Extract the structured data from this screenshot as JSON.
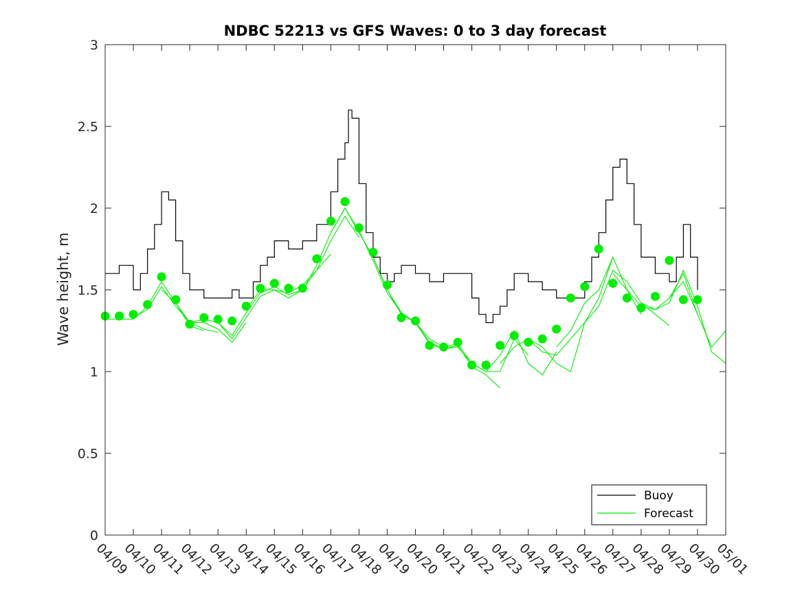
{
  "chart_data": {
    "type": "line",
    "title": "NDBC 52213 vs GFS Waves: 0 to 3 day forecast",
    "xlabel": "",
    "ylabel": "Wave height, m",
    "xlim": [
      "04/09",
      "05/01"
    ],
    "ylim": [
      0,
      3
    ],
    "x_tick_labels": [
      "04/09",
      "04/10",
      "04/11",
      "04/12",
      "04/13",
      "04/14",
      "04/15",
      "04/16",
      "04/17",
      "04/18",
      "04/19",
      "04/20",
      "04/21",
      "04/22",
      "04/23",
      "04/24",
      "04/25",
      "04/26",
      "04/27",
      "04/28",
      "04/29",
      "04/30",
      "05/01"
    ],
    "y_ticks": [
      0,
      0.5,
      1,
      1.5,
      2,
      2.5,
      3
    ],
    "y_tick_labels": [
      "0",
      "0.5",
      "1",
      "1.5",
      "2",
      "2.5",
      "3"
    ],
    "grid": false,
    "legend_position": "bottom-right",
    "legend": [
      "Buoy",
      "Forecast"
    ],
    "colors": {
      "buoy": "#000000",
      "forecast": "#00ee00"
    },
    "buoy": {
      "name": "Buoy",
      "x": [
        "04/09 00:00",
        "04/09 12:00",
        "04/10 00:00",
        "04/10 06:00",
        "04/10 12:00",
        "04/10 18:00",
        "04/11 00:00",
        "04/11 06:00",
        "04/11 12:00",
        "04/11 18:00",
        "04/12 00:00",
        "04/12 12:00",
        "04/13 00:00",
        "04/13 12:00",
        "04/13 18:00",
        "04/14 00:00",
        "04/14 06:00",
        "04/14 12:00",
        "04/14 18:00",
        "04/15 00:00",
        "04/15 12:00",
        "04/16 00:00",
        "04/16 12:00",
        "04/17 00:00",
        "04/17 06:00",
        "04/17 12:00",
        "04/17 15:00",
        "04/17 18:00",
        "04/18 00:00",
        "04/18 06:00",
        "04/18 12:00",
        "04/18 18:00",
        "04/19 00:00",
        "04/19 06:00",
        "04/19 12:00",
        "04/20 00:00",
        "04/20 12:00",
        "04/21 00:00",
        "04/21 12:00",
        "04/22 00:00",
        "04/22 06:00",
        "04/22 12:00",
        "04/22 18:00",
        "04/23 00:00",
        "04/23 06:00",
        "04/23 12:00",
        "04/24 00:00",
        "04/24 12:00",
        "04/25 00:00",
        "04/25 12:00",
        "04/26 00:00",
        "04/26 06:00",
        "04/26 12:00",
        "04/26 18:00",
        "04/27 00:00",
        "04/27 06:00",
        "04/27 12:00",
        "04/27 18:00",
        "04/28 00:00",
        "04/28 12:00",
        "04/29 00:00",
        "04/29 06:00",
        "04/29 12:00",
        "04/29 18:00",
        "04/30 00:00"
      ],
      "y": [
        1.6,
        1.65,
        1.5,
        1.6,
        1.75,
        1.9,
        2.1,
        2.05,
        1.8,
        1.6,
        1.5,
        1.45,
        1.45,
        1.5,
        1.45,
        1.45,
        1.55,
        1.65,
        1.7,
        1.8,
        1.75,
        1.8,
        1.9,
        2.1,
        2.3,
        2.4,
        2.6,
        2.55,
        2.15,
        1.85,
        1.7,
        1.6,
        1.55,
        1.6,
        1.65,
        1.6,
        1.55,
        1.6,
        1.6,
        1.45,
        1.35,
        1.3,
        1.35,
        1.4,
        1.5,
        1.6,
        1.55,
        1.5,
        1.45,
        1.45,
        1.55,
        1.7,
        1.85,
        2.05,
        2.25,
        2.3,
        2.15,
        1.9,
        1.7,
        1.6,
        1.55,
        1.7,
        1.9,
        1.7,
        1.5
      ]
    },
    "forecast": {
      "name": "Forecast",
      "daily_x": [
        "04/09 00:00",
        "04/09 12:00",
        "04/10 00:00",
        "04/10 12:00",
        "04/11 00:00",
        "04/11 12:00",
        "04/12 00:00",
        "04/12 12:00",
        "04/13 00:00",
        "04/13 12:00",
        "04/14 00:00",
        "04/14 12:00",
        "04/15 00:00",
        "04/15 12:00",
        "04/16 00:00",
        "04/16 12:00",
        "04/17 00:00",
        "04/17 12:00",
        "04/18 00:00",
        "04/18 12:00",
        "04/19 00:00",
        "04/19 12:00",
        "04/20 00:00",
        "04/20 12:00",
        "04/21 00:00",
        "04/21 12:00",
        "04/22 00:00",
        "04/22 12:00",
        "04/23 00:00",
        "04/23 12:00",
        "04/24 00:00",
        "04/24 12:00",
        "04/25 00:00",
        "04/25 12:00",
        "04/26 00:00",
        "04/26 12:00",
        "04/27 00:00",
        "04/27 12:00",
        "04/28 00:00",
        "04/28 12:00",
        "04/29 00:00",
        "04/29 12:00",
        "04/30 00:00"
      ],
      "daily_y": [
        1.34,
        1.34,
        1.35,
        1.41,
        1.58,
        1.44,
        1.29,
        1.33,
        1.32,
        1.31,
        1.4,
        1.51,
        1.54,
        1.51,
        1.51,
        1.69,
        1.92,
        2.04,
        1.88,
        1.73,
        1.53,
        1.33,
        1.31,
        1.16,
        1.15,
        1.18,
        1.04,
        1.04,
        1.16,
        1.22,
        1.18,
        1.2,
        1.26,
        1.45,
        1.52,
        1.75,
        1.54,
        1.45,
        1.39,
        1.46,
        1.68,
        1.44,
        1.44
      ],
      "runs": [
        {
          "x": [
            "04/09 00:00",
            "04/10 00:00",
            "04/10 12:00",
            "04/11 00:00",
            "04/11 12:00",
            "04/12 00:00",
            "04/12 12:00"
          ],
          "y": [
            1.32,
            1.32,
            1.4,
            1.55,
            1.42,
            1.28,
            1.25
          ]
        },
        {
          "x": [
            "04/10 00:00",
            "04/10 12:00",
            "04/11 00:00",
            "04/11 12:00",
            "04/12 00:00",
            "04/12 12:00",
            "04/13 00:00"
          ],
          "y": [
            1.33,
            1.38,
            1.52,
            1.4,
            1.3,
            1.26,
            1.24
          ]
        },
        {
          "x": [
            "04/11 00:00",
            "04/11 12:00",
            "04/12 00:00",
            "04/12 12:00",
            "04/13 00:00",
            "04/13 12:00",
            "04/14 00:00"
          ],
          "y": [
            1.5,
            1.42,
            1.3,
            1.3,
            1.26,
            1.18,
            1.3
          ]
        },
        {
          "x": [
            "04/12 00:00",
            "04/12 12:00",
            "04/13 00:00",
            "04/13 12:00",
            "04/14 00:00",
            "04/14 12:00",
            "04/15 00:00"
          ],
          "y": [
            1.3,
            1.32,
            1.3,
            1.2,
            1.33,
            1.46,
            1.5
          ]
        },
        {
          "x": [
            "04/13 00:00",
            "04/13 12:00",
            "04/14 00:00",
            "04/14 12:00",
            "04/15 00:00",
            "04/15 12:00",
            "04/16 00:00"
          ],
          "y": [
            1.3,
            1.22,
            1.36,
            1.48,
            1.52,
            1.47,
            1.5
          ]
        },
        {
          "x": [
            "04/14 00:00",
            "04/14 12:00",
            "04/15 00:00",
            "04/15 12:00",
            "04/16 00:00",
            "04/16 12:00",
            "04/17 00:00"
          ],
          "y": [
            1.38,
            1.5,
            1.5,
            1.48,
            1.53,
            1.62,
            1.72
          ]
        },
        {
          "x": [
            "04/15 00:00",
            "04/15 12:00",
            "04/16 00:00",
            "04/16 12:00",
            "04/17 00:00",
            "04/17 12:00",
            "04/18 00:00"
          ],
          "y": [
            1.5,
            1.45,
            1.5,
            1.62,
            1.8,
            1.95,
            1.82
          ]
        },
        {
          "x": [
            "04/16 00:00",
            "04/16 12:00",
            "04/17 00:00",
            "04/17 12:00",
            "04/18 00:00",
            "04/18 12:00",
            "04/19 00:00"
          ],
          "y": [
            1.5,
            1.65,
            1.85,
            2.0,
            1.85,
            1.7,
            1.5
          ]
        },
        {
          "x": [
            "04/17 00:00",
            "04/17 12:00",
            "04/18 00:00",
            "04/18 12:00",
            "04/19 00:00",
            "04/19 12:00",
            "04/20 00:00"
          ],
          "y": [
            1.85,
            2.0,
            1.86,
            1.68,
            1.48,
            1.36,
            1.3
          ]
        },
        {
          "x": [
            "04/18 00:00",
            "04/18 12:00",
            "04/19 00:00",
            "04/19 12:00",
            "04/20 00:00",
            "04/20 12:00",
            "04/21 00:00"
          ],
          "y": [
            1.85,
            1.7,
            1.5,
            1.35,
            1.3,
            1.2,
            1.15
          ]
        },
        {
          "x": [
            "04/19 00:00",
            "04/19 12:00",
            "04/20 00:00",
            "04/20 12:00",
            "04/21 00:00",
            "04/21 12:00",
            "04/22 00:00"
          ],
          "y": [
            1.5,
            1.36,
            1.3,
            1.18,
            1.14,
            1.15,
            1.05
          ]
        },
        {
          "x": [
            "04/20 00:00",
            "04/20 12:00",
            "04/21 00:00",
            "04/21 12:00",
            "04/22 00:00",
            "04/22 12:00",
            "04/23 00:00"
          ],
          "y": [
            1.3,
            1.17,
            1.14,
            1.16,
            1.03,
            0.98,
            0.9
          ]
        },
        {
          "x": [
            "04/21 00:00",
            "04/21 12:00",
            "04/22 00:00",
            "04/22 12:00",
            "04/23 00:00",
            "04/23 12:00",
            "04/24 00:00"
          ],
          "y": [
            1.15,
            1.17,
            1.05,
            1.0,
            1.0,
            1.2,
            1.1
          ]
        },
        {
          "x": [
            "04/22 00:00",
            "04/22 12:00",
            "04/23 00:00",
            "04/23 12:00",
            "04/24 00:00",
            "04/24 12:00",
            "04/25 00:00"
          ],
          "y": [
            1.05,
            1.0,
            1.1,
            1.25,
            1.05,
            0.98,
            1.12
          ]
        },
        {
          "x": [
            "04/23 00:00",
            "04/23 12:00",
            "04/24 00:00",
            "04/24 12:00",
            "04/25 00:00",
            "04/25 12:00",
            "04/26 00:00"
          ],
          "y": [
            1.05,
            1.15,
            1.2,
            1.12,
            1.1,
            1.2,
            1.3
          ]
        },
        {
          "x": [
            "04/24 00:00",
            "04/24 12:00",
            "04/25 00:00",
            "04/25 12:00",
            "04/26 00:00",
            "04/26 12:00",
            "04/27 00:00"
          ],
          "y": [
            1.2,
            1.15,
            1.05,
            1.0,
            1.3,
            1.45,
            1.7
          ]
        },
        {
          "x": [
            "04/25 00:00",
            "04/25 12:00",
            "04/26 00:00",
            "04/26 12:00",
            "04/27 00:00",
            "04/27 12:00",
            "04/28 00:00"
          ],
          "y": [
            1.15,
            1.25,
            1.42,
            1.5,
            1.7,
            1.5,
            1.35
          ]
        },
        {
          "x": [
            "04/26 00:00",
            "04/26 12:00",
            "04/27 00:00",
            "04/27 12:00",
            "04/28 00:00",
            "04/28 12:00",
            "04/29 00:00"
          ],
          "y": [
            1.3,
            1.4,
            1.62,
            1.55,
            1.42,
            1.35,
            1.28
          ]
        },
        {
          "x": [
            "04/27 00:00",
            "04/27 12:00",
            "04/28 00:00",
            "04/28 12:00",
            "04/29 00:00",
            "04/29 12:00",
            "04/30 00:00"
          ],
          "y": [
            1.6,
            1.5,
            1.4,
            1.38,
            1.45,
            1.6,
            1.35
          ]
        },
        {
          "x": [
            "04/28 00:00",
            "04/28 12:00",
            "04/29 00:00",
            "04/29 12:00",
            "04/30 00:00",
            "04/30 12:00",
            "05/01 00:00"
          ],
          "y": [
            1.42,
            1.38,
            1.42,
            1.62,
            1.4,
            1.12,
            1.05
          ]
        },
        {
          "x": [
            "04/29 00:00",
            "04/29 12:00",
            "04/30 00:00",
            "04/30 12:00",
            "05/01 00:00"
          ],
          "y": [
            1.45,
            1.55,
            1.35,
            1.15,
            1.25
          ]
        }
      ]
    }
  }
}
